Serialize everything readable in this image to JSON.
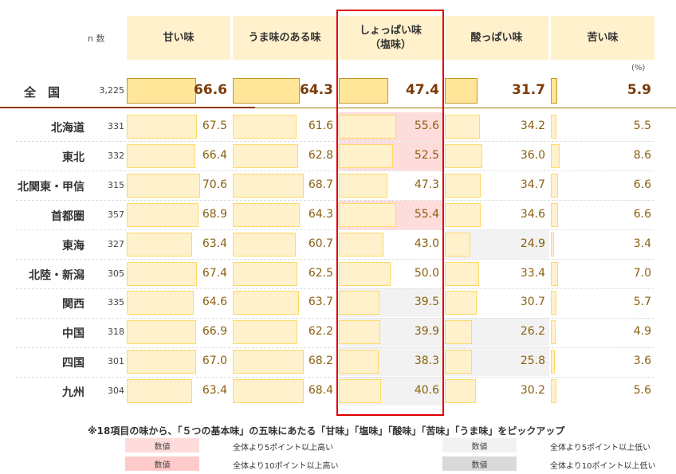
{
  "chart_data": {
    "type": "table",
    "n_label": "n 数",
    "unit": "(%)",
    "columns": [
      "甘い味",
      "うま味のある味",
      "しょっぱい味\n（塩味）",
      "酸っぱい味",
      "苦い味"
    ],
    "national": {
      "label": "全　国",
      "n": "3,225",
      "values": [
        66.6,
        64.3,
        47.4,
        31.7,
        5.9
      ]
    },
    "rows": [
      {
        "label": "北海道",
        "n": "331",
        "values": [
          67.5,
          61.6,
          55.6,
          34.2,
          5.5
        ],
        "shade": [
          0,
          0,
          1,
          0,
          0
        ]
      },
      {
        "label": "東北",
        "n": "332",
        "values": [
          66.4,
          62.8,
          52.5,
          36.0,
          8.6
        ],
        "shade": [
          0,
          0,
          1,
          0,
          0
        ]
      },
      {
        "label": "北関東・甲信",
        "n": "315",
        "values": [
          70.6,
          68.7,
          47.3,
          34.7,
          6.6
        ],
        "shade": [
          0,
          0,
          0,
          0,
          0
        ]
      },
      {
        "label": "首都圏",
        "n": "357",
        "values": [
          68.9,
          64.3,
          55.4,
          34.6,
          6.6
        ],
        "shade": [
          0,
          0,
          1,
          0,
          0
        ]
      },
      {
        "label": "東海",
        "n": "327",
        "values": [
          63.4,
          60.7,
          43.0,
          24.9,
          3.4
        ],
        "shade": [
          0,
          0,
          0,
          -1,
          0
        ]
      },
      {
        "label": "北陸・新潟",
        "n": "305",
        "values": [
          67.4,
          62.5,
          50.0,
          33.4,
          7.0
        ],
        "shade": [
          0,
          0,
          0,
          0,
          0
        ]
      },
      {
        "label": "関西",
        "n": "335",
        "values": [
          64.6,
          63.7,
          39.5,
          30.7,
          5.7
        ],
        "shade": [
          0,
          0,
          -1,
          0,
          0
        ]
      },
      {
        "label": "中国",
        "n": "318",
        "values": [
          66.9,
          62.2,
          39.9,
          26.2,
          4.9
        ],
        "shade": [
          0,
          0,
          -1,
          -1,
          0
        ]
      },
      {
        "label": "四国",
        "n": "301",
        "values": [
          67.0,
          68.2,
          38.3,
          25.8,
          3.6
        ],
        "shade": [
          0,
          0,
          -1,
          -1,
          0
        ]
      },
      {
        "label": "九州",
        "n": "304",
        "values": [
          63.4,
          68.4,
          40.6,
          30.2,
          5.6
        ],
        "shade": [
          0,
          0,
          -1,
          0,
          0
        ]
      }
    ],
    "highlighted_column": "しょっぱい味（塩味）"
  },
  "note": "※18項目の味から、「５つの基本味」の五味にあたる「甘味」「塩味」「酸味」「苦味」「うま味」をピックアップ",
  "legend": [
    {
      "cell": "数値",
      "text": "全体より5ポイント以上高い",
      "color": "#ffdcdc"
    },
    {
      "cell": "数値",
      "text": "全体より10ポイント以上高い",
      "color": "#ffcaca"
    },
    {
      "cell": "数値",
      "text": "全体より5ポイント以上低い",
      "color": "#f2f2f2"
    },
    {
      "cell": "数値",
      "text": "全体より10ポイント以上低い",
      "color": "#d9d9d9"
    }
  ],
  "colors": {
    "highlight_border": "#e00000",
    "bar_fill": "#fff1cc",
    "bar_border": "#ffd966",
    "national_bar": "#ffe699"
  }
}
